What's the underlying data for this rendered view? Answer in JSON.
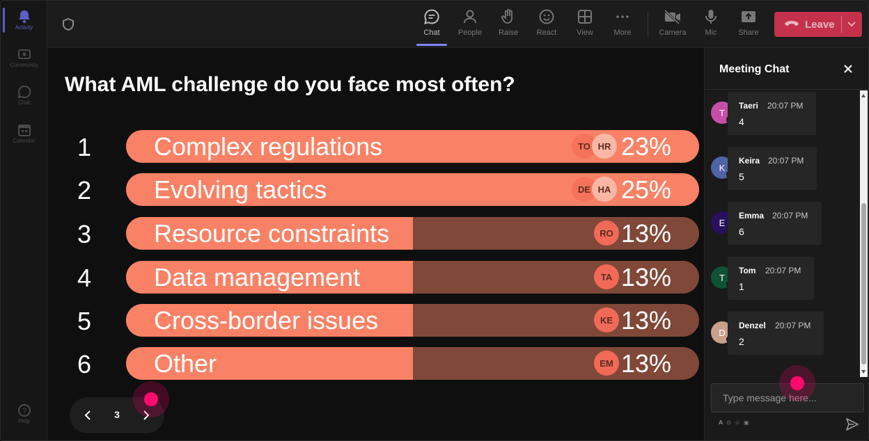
{
  "rail": {
    "items": [
      {
        "label": "Activity",
        "icon": "bell-icon"
      },
      {
        "label": "Community",
        "icon": "community-icon"
      },
      {
        "label": "Chat",
        "icon": "chat-icon"
      },
      {
        "label": "Calendar",
        "icon": "calendar-icon"
      }
    ],
    "help": "Help"
  },
  "toolbar": {
    "items": [
      {
        "label": "Chat",
        "icon": "chat-icon"
      },
      {
        "label": "People",
        "icon": "people-icon"
      },
      {
        "label": "Raise",
        "icon": "raise-hand-icon"
      },
      {
        "label": "React",
        "icon": "react-icon"
      },
      {
        "label": "View",
        "icon": "view-icon"
      },
      {
        "label": "More",
        "icon": "more-icon"
      }
    ],
    "devices": [
      {
        "label": "Camera",
        "icon": "camera-off-icon"
      },
      {
        "label": "Mic",
        "icon": "mic-icon"
      },
      {
        "label": "Share",
        "icon": "share-icon"
      }
    ],
    "leave_label": "Leave"
  },
  "poll": {
    "question": "What AML challenge do you face most often?",
    "options": [
      {
        "num": "1",
        "label": "Complex regulations",
        "percent_text": "23%",
        "percent": 23,
        "chips": [
          "TO",
          "HR"
        ]
      },
      {
        "num": "2",
        "label": "Evolving tactics",
        "percent_text": "25%",
        "percent": 25,
        "chips": [
          "DE",
          "HA"
        ]
      },
      {
        "num": "3",
        "label": "Resource constraints",
        "percent_text": "13%",
        "percent": 13,
        "chips": [
          "RO"
        ]
      },
      {
        "num": "4",
        "label": "Data management",
        "percent_text": "13%",
        "percent": 13,
        "chips": [
          "TA"
        ]
      },
      {
        "num": "5",
        "label": "Cross-border issues",
        "percent_text": "13%",
        "percent": 13,
        "chips": [
          "KE"
        ]
      },
      {
        "num": "6",
        "label": "Other",
        "percent_text": "13%",
        "percent": 13,
        "chips": [
          "EM"
        ]
      }
    ],
    "page": "3"
  },
  "chat": {
    "title": "Meeting Chat",
    "messages": [
      {
        "initial": "T",
        "name": "Taeri",
        "time": "20:07 PM",
        "text": "4",
        "color": "#c54fa6"
      },
      {
        "initial": "K",
        "name": "Keira",
        "time": "20:07 PM",
        "text": "5",
        "color": "#4f63a6"
      },
      {
        "initial": "E",
        "name": "Emma",
        "time": "20:07 PM",
        "text": "6",
        "color": "#2a0f5e"
      },
      {
        "initial": "T",
        "name": "Tom",
        "time": "20:07 PM",
        "text": "1",
        "color": "#0f5237"
      },
      {
        "initial": "D",
        "name": "Denzel",
        "time": "20:07 PM",
        "text": "2",
        "color": "#c9a08a"
      }
    ],
    "input_placeholder": "Type message here..."
  },
  "colors": {
    "bar_fill": "#f98266",
    "bar_track": "#804838",
    "leave": "#c4314b",
    "accent": "#7f85f5",
    "cursor": "#ff0a6c"
  }
}
